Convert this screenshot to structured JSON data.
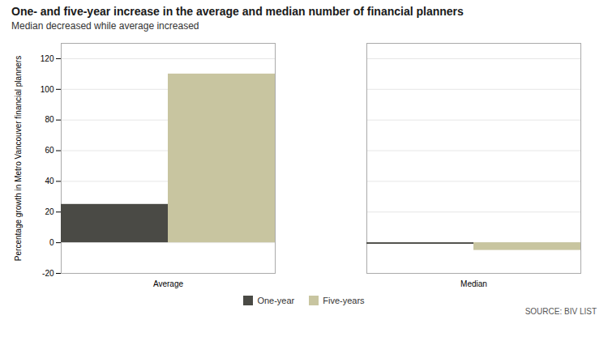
{
  "chart_data": {
    "type": "bar",
    "title": "One- and five-year increase in the average and median number of financial planners",
    "subtitle": "Median decreased while average increased",
    "categories": [
      "Average",
      "Median"
    ],
    "series": [
      {
        "name": "One-year",
        "color": "#4a4a45",
        "values": [
          25,
          -1
        ]
      },
      {
        "name": "Five-years",
        "color": "#c8c5a0",
        "values": [
          110,
          -5
        ]
      }
    ],
    "ylabel": "Percentage growth in Metro Vancouver financial planners",
    "ylim": [
      -20,
      130
    ],
    "yticks": [
      -20,
      0,
      20,
      40,
      60,
      80,
      100,
      120
    ],
    "grid": true,
    "legend": "bottom",
    "source": "SOURCE: BIV LIST"
  }
}
